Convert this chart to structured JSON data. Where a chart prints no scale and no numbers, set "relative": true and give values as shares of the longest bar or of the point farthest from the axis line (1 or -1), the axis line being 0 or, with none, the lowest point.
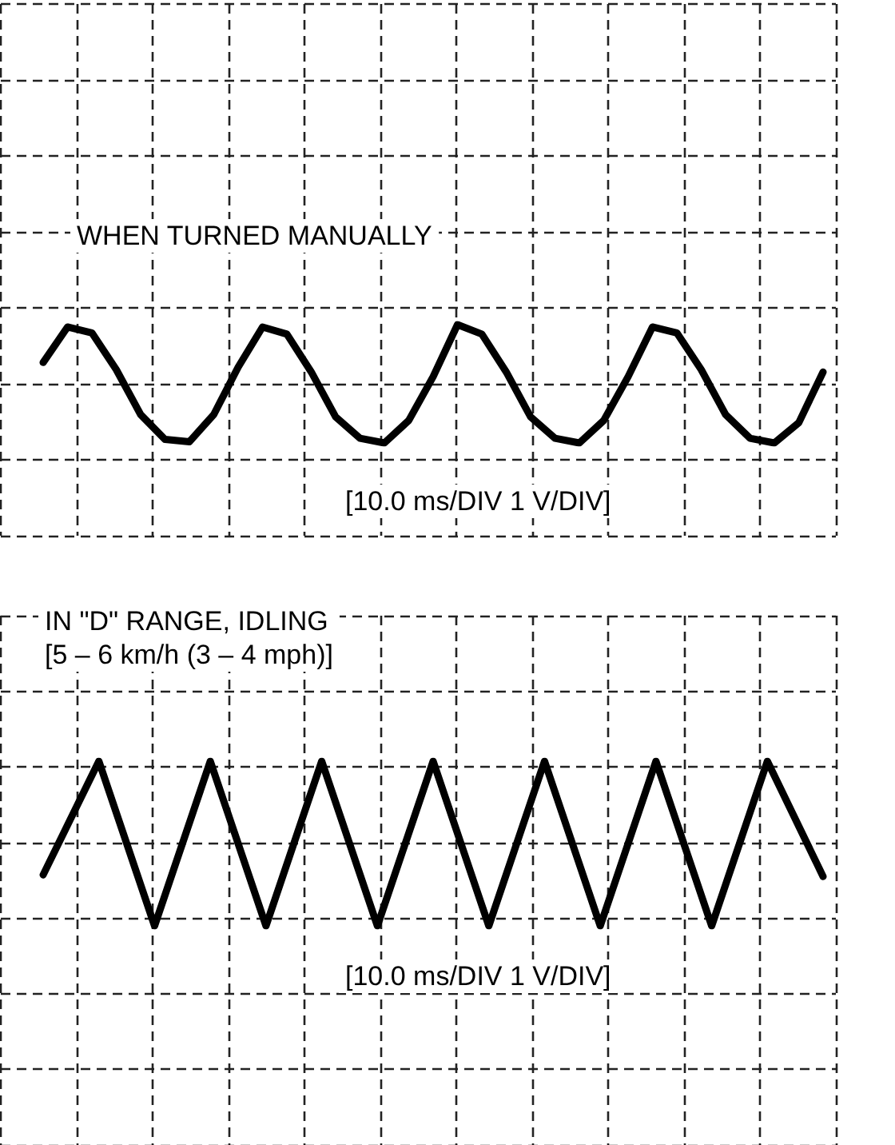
{
  "chart_data": [
    {
      "type": "line",
      "title": "WHEN TURNED MANUALLY",
      "annotations": [
        "[10.0 ms/DIV 1 V/DIV]"
      ],
      "relative": true,
      "grid": true,
      "marker": "none",
      "line_style": "solid",
      "categories": [
        null,
        null,
        null,
        null,
        null,
        null,
        null,
        null,
        null,
        null,
        null,
        null,
        null,
        null,
        null,
        null,
        null,
        null,
        null,
        null,
        null,
        null,
        null,
        null,
        null,
        null,
        null,
        null,
        null,
        null,
        null,
        null,
        null
      ],
      "series": [
        {
          "color": "#000000",
          "values": [
            0.36,
            0.96,
            0.86,
            0.24,
            -0.52,
            -0.94,
            -0.98,
            -0.52,
            0.28,
            0.96,
            0.84,
            0.2,
            -0.56,
            -0.92,
            -1,
            -0.62,
            0.12,
            1,
            0.84,
            0.2,
            -0.56,
            -0.92,
            -1,
            -0.62,
            0.12,
            0.96,
            0.86,
            0.24,
            -0.52,
            -0.92,
            -1,
            -0.66,
            0.2
          ]
        }
      ]
    },
    {
      "type": "line",
      "title": "IN \"D\" RANGE, IDLING",
      "subtitle": "[5 – 6 km/h (3 – 4 mph)]",
      "annotations": [
        "[10.0 ms/DIV 1 V/DIV]"
      ],
      "relative": true,
      "grid": true,
      "marker": "none",
      "line_style": "solid",
      "categories": [
        null,
        null,
        null,
        null,
        null,
        null,
        null,
        null,
        null,
        null,
        null,
        null,
        null,
        null,
        null
      ],
      "series": [
        {
          "color": "#000000",
          "values": [
            -0.38,
            1,
            -1,
            1,
            -1,
            1,
            -1,
            1,
            -1,
            1,
            -1,
            1,
            -1,
            1,
            -0.4
          ]
        }
      ]
    }
  ]
}
